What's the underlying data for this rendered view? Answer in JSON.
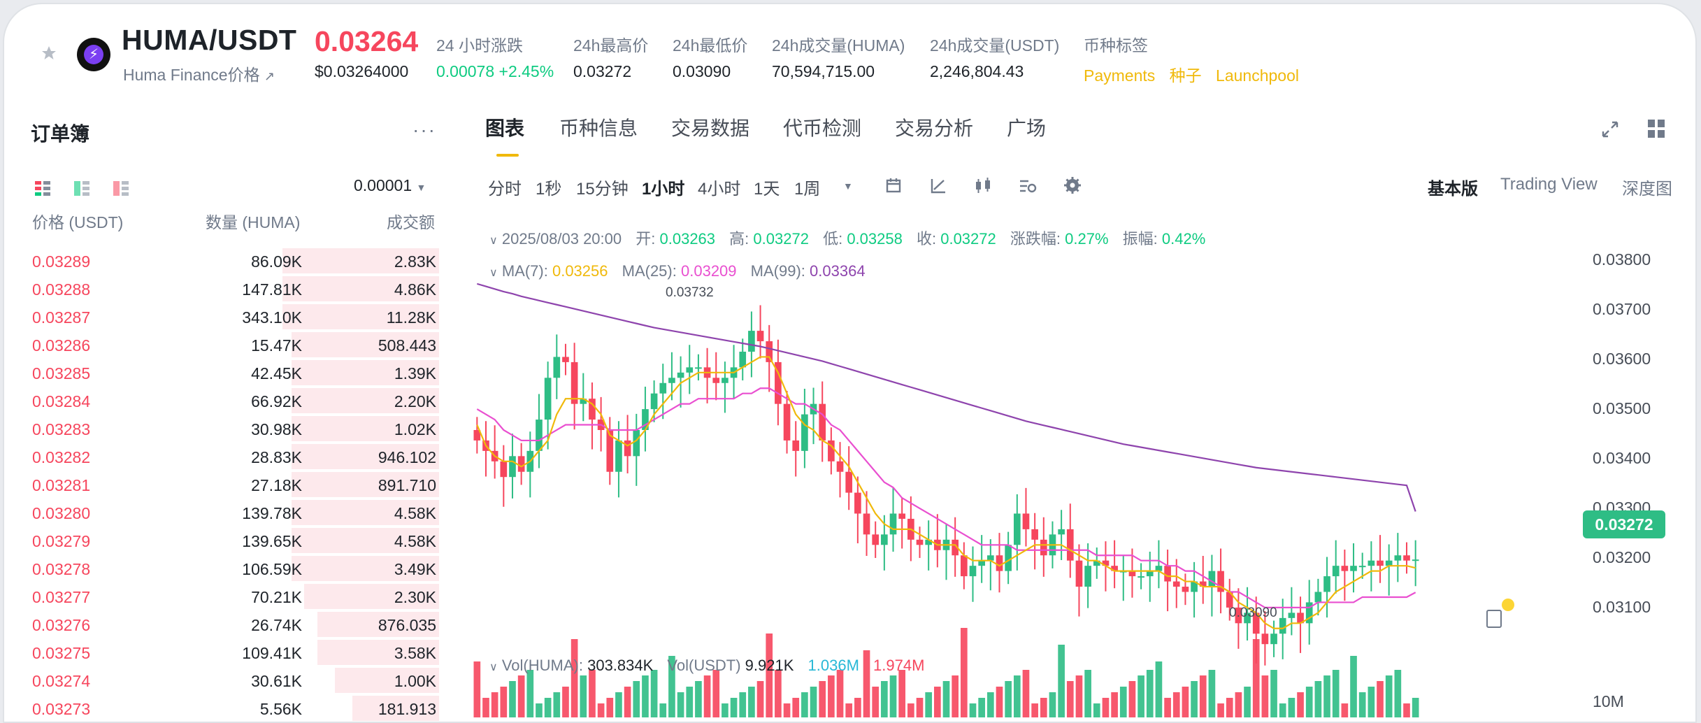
{
  "header": {
    "pair": "HUMA/USDT",
    "subtitle": "Huma Finance价格",
    "last_price": "0.03264",
    "last_price_usd": "$0.03264000",
    "stats": [
      {
        "label": "24 小时涨跌",
        "value": "0.00078 +2.45%",
        "color": "#0ecb81"
      },
      {
        "label": "24h最高价",
        "value": "0.03272"
      },
      {
        "label": "24h最低价",
        "value": "0.03090"
      },
      {
        "label": "24h成交量(HUMA)",
        "value": "70,594,715.00"
      },
      {
        "label": "24h成交量(USDT)",
        "value": "2,246,804.43"
      },
      {
        "label": "币种标签"
      }
    ],
    "tags": [
      "Payments",
      "种子",
      "Launchpool"
    ]
  },
  "orderbook": {
    "title": "订单簿",
    "precision": "0.00001",
    "columns": [
      "价格 (USDT)",
      "数量 (HUMA)",
      "成交额"
    ],
    "rows": [
      {
        "price": "0.03289",
        "qty": "86.09K",
        "total": "2.83K",
        "depth": 0.36
      },
      {
        "price": "0.03288",
        "qty": "147.81K",
        "total": "4.86K",
        "depth": 0.36
      },
      {
        "price": "0.03287",
        "qty": "343.10K",
        "total": "11.28K",
        "depth": 0.36
      },
      {
        "price": "0.03286",
        "qty": "15.47K",
        "total": "508.443",
        "depth": 0.34
      },
      {
        "price": "0.03285",
        "qty": "42.45K",
        "total": "1.39K",
        "depth": 0.34
      },
      {
        "price": "0.03284",
        "qty": "66.92K",
        "total": "2.20K",
        "depth": 0.34
      },
      {
        "price": "0.03283",
        "qty": "30.98K",
        "total": "1.02K",
        "depth": 0.34
      },
      {
        "price": "0.03282",
        "qty": "28.83K",
        "total": "946.102",
        "depth": 0.34
      },
      {
        "price": "0.03281",
        "qty": "27.18K",
        "total": "891.710",
        "depth": 0.34
      },
      {
        "price": "0.03280",
        "qty": "139.78K",
        "total": "4.58K",
        "depth": 0.34
      },
      {
        "price": "0.03279",
        "qty": "139.65K",
        "total": "4.58K",
        "depth": 0.34
      },
      {
        "price": "0.03278",
        "qty": "106.59K",
        "total": "3.49K",
        "depth": 0.34
      },
      {
        "price": "0.03277",
        "qty": "70.21K",
        "total": "2.30K",
        "depth": 0.31
      },
      {
        "price": "0.03276",
        "qty": "26.74K",
        "total": "876.035",
        "depth": 0.28
      },
      {
        "price": "0.03275",
        "qty": "109.41K",
        "total": "3.58K",
        "depth": 0.28
      },
      {
        "price": "0.03274",
        "qty": "30.61K",
        "total": "1.00K",
        "depth": 0.24
      },
      {
        "price": "0.03273",
        "qty": "5.56K",
        "total": "181.913",
        "depth": 0.2
      }
    ]
  },
  "tabs": [
    "图表",
    "币种信息",
    "交易数据",
    "代币检测",
    "交易分析",
    "广场"
  ],
  "timeframes": [
    "分时",
    "1秒",
    "15分钟",
    "1小时",
    "4小时",
    "1天",
    "1周"
  ],
  "views": [
    "基本版",
    "Trading View",
    "深度图"
  ],
  "ohlc": {
    "date": "2025/08/03 20:00",
    "open_label": "开:",
    "open": "0.03263",
    "high_label": "高:",
    "high": "0.03272",
    "low_label": "低:",
    "low": "0.03258",
    "close_label": "收:",
    "close": "0.03272",
    "chg_label": "涨跌幅:",
    "chg": "0.27%",
    "amp_label": "振幅:",
    "amp": "0.42%"
  },
  "ma": {
    "ma7_label": "MA(7):",
    "ma7": "0.03256",
    "ma7_color": "#f0b90b",
    "ma25_label": "MA(25):",
    "ma25": "0.03209",
    "ma25_color": "#e94fd0",
    "ma99_label": "MA(99):",
    "ma99": "0.03364",
    "ma99_color": "#8e44ad"
  },
  "volume": {
    "huma_label": "Vol(HUMA):",
    "huma": "303.834K",
    "usdt_label": "Vol(USDT)",
    "usdt": "9.921K",
    "v1": "1.036M",
    "v2": "1.974M"
  },
  "yaxis": [
    "0.03800",
    "0.03700",
    "0.03600",
    "0.03500",
    "0.03400",
    "0.03300",
    "0.03200",
    "0.03100"
  ],
  "vol_axis_label": "10M",
  "current_price_tag": "0.03272",
  "annotations": {
    "high": "0.03732",
    "low": "0.03090"
  },
  "chart_data": {
    "type": "candlestick",
    "interval": "1小时",
    "ylim": [
      0.0305,
      0.0384
    ],
    "candles_close": [
      0.035,
      0.0348,
      0.0346,
      0.0343,
      0.0347,
      0.0344,
      0.0348,
      0.0354,
      0.0362,
      0.0366,
      0.0365,
      0.0357,
      0.0358,
      0.0354,
      0.0352,
      0.0344,
      0.035,
      0.0347,
      0.0352,
      0.0356,
      0.0359,
      0.0361,
      0.0362,
      0.0363,
      0.0364,
      0.0364,
      0.0362,
      0.0361,
      0.0362,
      0.0364,
      0.0367,
      0.0371,
      0.0369,
      0.0365,
      0.0357,
      0.035,
      0.0348,
      0.0355,
      0.0357,
      0.035,
      0.0346,
      0.0344,
      0.034,
      0.0336,
      0.0332,
      0.033,
      0.0332,
      0.0336,
      0.0335,
      0.0331,
      0.033,
      0.0331,
      0.0329,
      0.0331,
      0.0328,
      0.0324,
      0.0326,
      0.0327,
      0.0328,
      0.0325,
      0.033,
      0.0336,
      0.0333,
      0.0331,
      0.0328,
      0.0332,
      0.0333,
      0.0327,
      0.0322,
      0.0326,
      0.0327,
      0.0326,
      0.0325,
      0.0325,
      0.0324,
      0.0324,
      0.0325,
      0.0326,
      0.0323,
      0.0322,
      0.0321,
      0.0323,
      0.0322,
      0.0325,
      0.0321,
      0.0318,
      0.0315,
      0.0317,
      0.0313,
      0.0311,
      0.0313,
      0.0316,
      0.0317,
      0.0315,
      0.0319,
      0.0321,
      0.0324,
      0.0326,
      0.0325,
      0.0326,
      0.0326,
      0.0327,
      0.0326,
      0.0327,
      0.0328,
      0.0327,
      0.03272
    ],
    "ma7": [
      0.0353,
      0.0349,
      0.0347,
      0.0346,
      0.0346,
      0.0345,
      0.0346,
      0.0348,
      0.035,
      0.0355,
      0.0358,
      0.0358,
      0.0358,
      0.0357,
      0.0355,
      0.0351,
      0.035,
      0.0349,
      0.035,
      0.0352,
      0.0355,
      0.0357,
      0.0359,
      0.0361,
      0.0362,
      0.0363,
      0.0363,
      0.0363,
      0.0363,
      0.0363,
      0.0364,
      0.0365,
      0.0366,
      0.0366,
      0.0363,
      0.0359,
      0.0355,
      0.0353,
      0.0352,
      0.035,
      0.0349,
      0.0347,
      0.0345,
      0.0342,
      0.0339,
      0.0336,
      0.0334,
      0.0333,
      0.0333,
      0.0333,
      0.0332,
      0.0331,
      0.033,
      0.033,
      0.033,
      0.0328,
      0.0327,
      0.0327,
      0.0327,
      0.0326,
      0.0327,
      0.0328,
      0.0329,
      0.033,
      0.033,
      0.033,
      0.033,
      0.0329,
      0.0328,
      0.0327,
      0.0327,
      0.0326,
      0.0325,
      0.0325,
      0.0325,
      0.0325,
      0.0325,
      0.0325,
      0.0324,
      0.0324,
      0.0323,
      0.0323,
      0.0322,
      0.0322,
      0.0322,
      0.0321,
      0.0319,
      0.0318,
      0.0317,
      0.0315,
      0.0314,
      0.0314,
      0.0315,
      0.0315,
      0.0316,
      0.0317,
      0.0319,
      0.0321,
      0.0322,
      0.0323,
      0.0324,
      0.0325,
      0.0325,
      0.0326,
      0.0326,
      0.0326,
      0.03256
    ],
    "ma25": [
      0.0356,
      0.0355,
      0.0354,
      0.0352,
      0.0351,
      0.035,
      0.035,
      0.035,
      0.0351,
      0.0352,
      0.0353,
      0.0353,
      0.0353,
      0.0353,
      0.0353,
      0.0352,
      0.0352,
      0.0352,
      0.0352,
      0.0353,
      0.0354,
      0.0355,
      0.0356,
      0.0357,
      0.0357,
      0.0358,
      0.0358,
      0.0358,
      0.0358,
      0.0358,
      0.0359,
      0.0359,
      0.036,
      0.036,
      0.0359,
      0.0358,
      0.0357,
      0.0357,
      0.0356,
      0.0355,
      0.0353,
      0.0352,
      0.035,
      0.0348,
      0.0346,
      0.0344,
      0.0342,
      0.0341,
      0.0339,
      0.0338,
      0.0337,
      0.0336,
      0.0335,
      0.0334,
      0.0333,
      0.0332,
      0.0331,
      0.033,
      0.033,
      0.033,
      0.033,
      0.0329,
      0.0329,
      0.0329,
      0.0329,
      0.0329,
      0.0329,
      0.0329,
      0.0329,
      0.0329,
      0.0328,
      0.0328,
      0.0328,
      0.0328,
      0.0328,
      0.0327,
      0.0327,
      0.0327,
      0.0326,
      0.0326,
      0.0325,
      0.0325,
      0.0324,
      0.0323,
      0.0322,
      0.0321,
      0.0321,
      0.032,
      0.0319,
      0.0318,
      0.0318,
      0.0318,
      0.0318,
      0.0318,
      0.0318,
      0.0319,
      0.0319,
      0.0319,
      0.0319,
      0.0319,
      0.032,
      0.032,
      0.032,
      0.032,
      0.032,
      0.032,
      0.03209
    ],
    "ma99": [
      0.038,
      0.03795,
      0.0379,
      0.03785,
      0.03781,
      0.03776,
      0.03772,
      0.03768,
      0.03764,
      0.0376,
      0.03756,
      0.03752,
      0.03748,
      0.03744,
      0.0374,
      0.03736,
      0.03732,
      0.03728,
      0.03724,
      0.0372,
      0.03716,
      0.03713,
      0.0371,
      0.03707,
      0.03704,
      0.03701,
      0.03698,
      0.03695,
      0.03692,
      0.03689,
      0.03686,
      0.03683,
      0.0368,
      0.03676,
      0.03672,
      0.03668,
      0.03664,
      0.0366,
      0.03656,
      0.03652,
      0.03647,
      0.03642,
      0.03637,
      0.03632,
      0.03627,
      0.03622,
      0.03617,
      0.03612,
      0.03607,
      0.03602,
      0.03597,
      0.03592,
      0.03587,
      0.03582,
      0.03577,
      0.03572,
      0.03567,
      0.03562,
      0.03557,
      0.03552,
      0.03547,
      0.03542,
      0.03537,
      0.03533,
      0.03529,
      0.03525,
      0.03521,
      0.03517,
      0.03513,
      0.03509,
      0.03505,
      0.03501,
      0.03497,
      0.03493,
      0.0349,
      0.03487,
      0.03484,
      0.03481,
      0.03478,
      0.03475,
      0.03472,
      0.03469,
      0.03466,
      0.03463,
      0.0346,
      0.03457,
      0.03454,
      0.03451,
      0.03448,
      0.03446,
      0.03444,
      0.03442,
      0.0344,
      0.03438,
      0.03436,
      0.03434,
      0.03432,
      0.0343,
      0.03428,
      0.03426,
      0.03424,
      0.03422,
      0.0342,
      0.03418,
      0.03416,
      0.03414,
      0.03364
    ]
  }
}
